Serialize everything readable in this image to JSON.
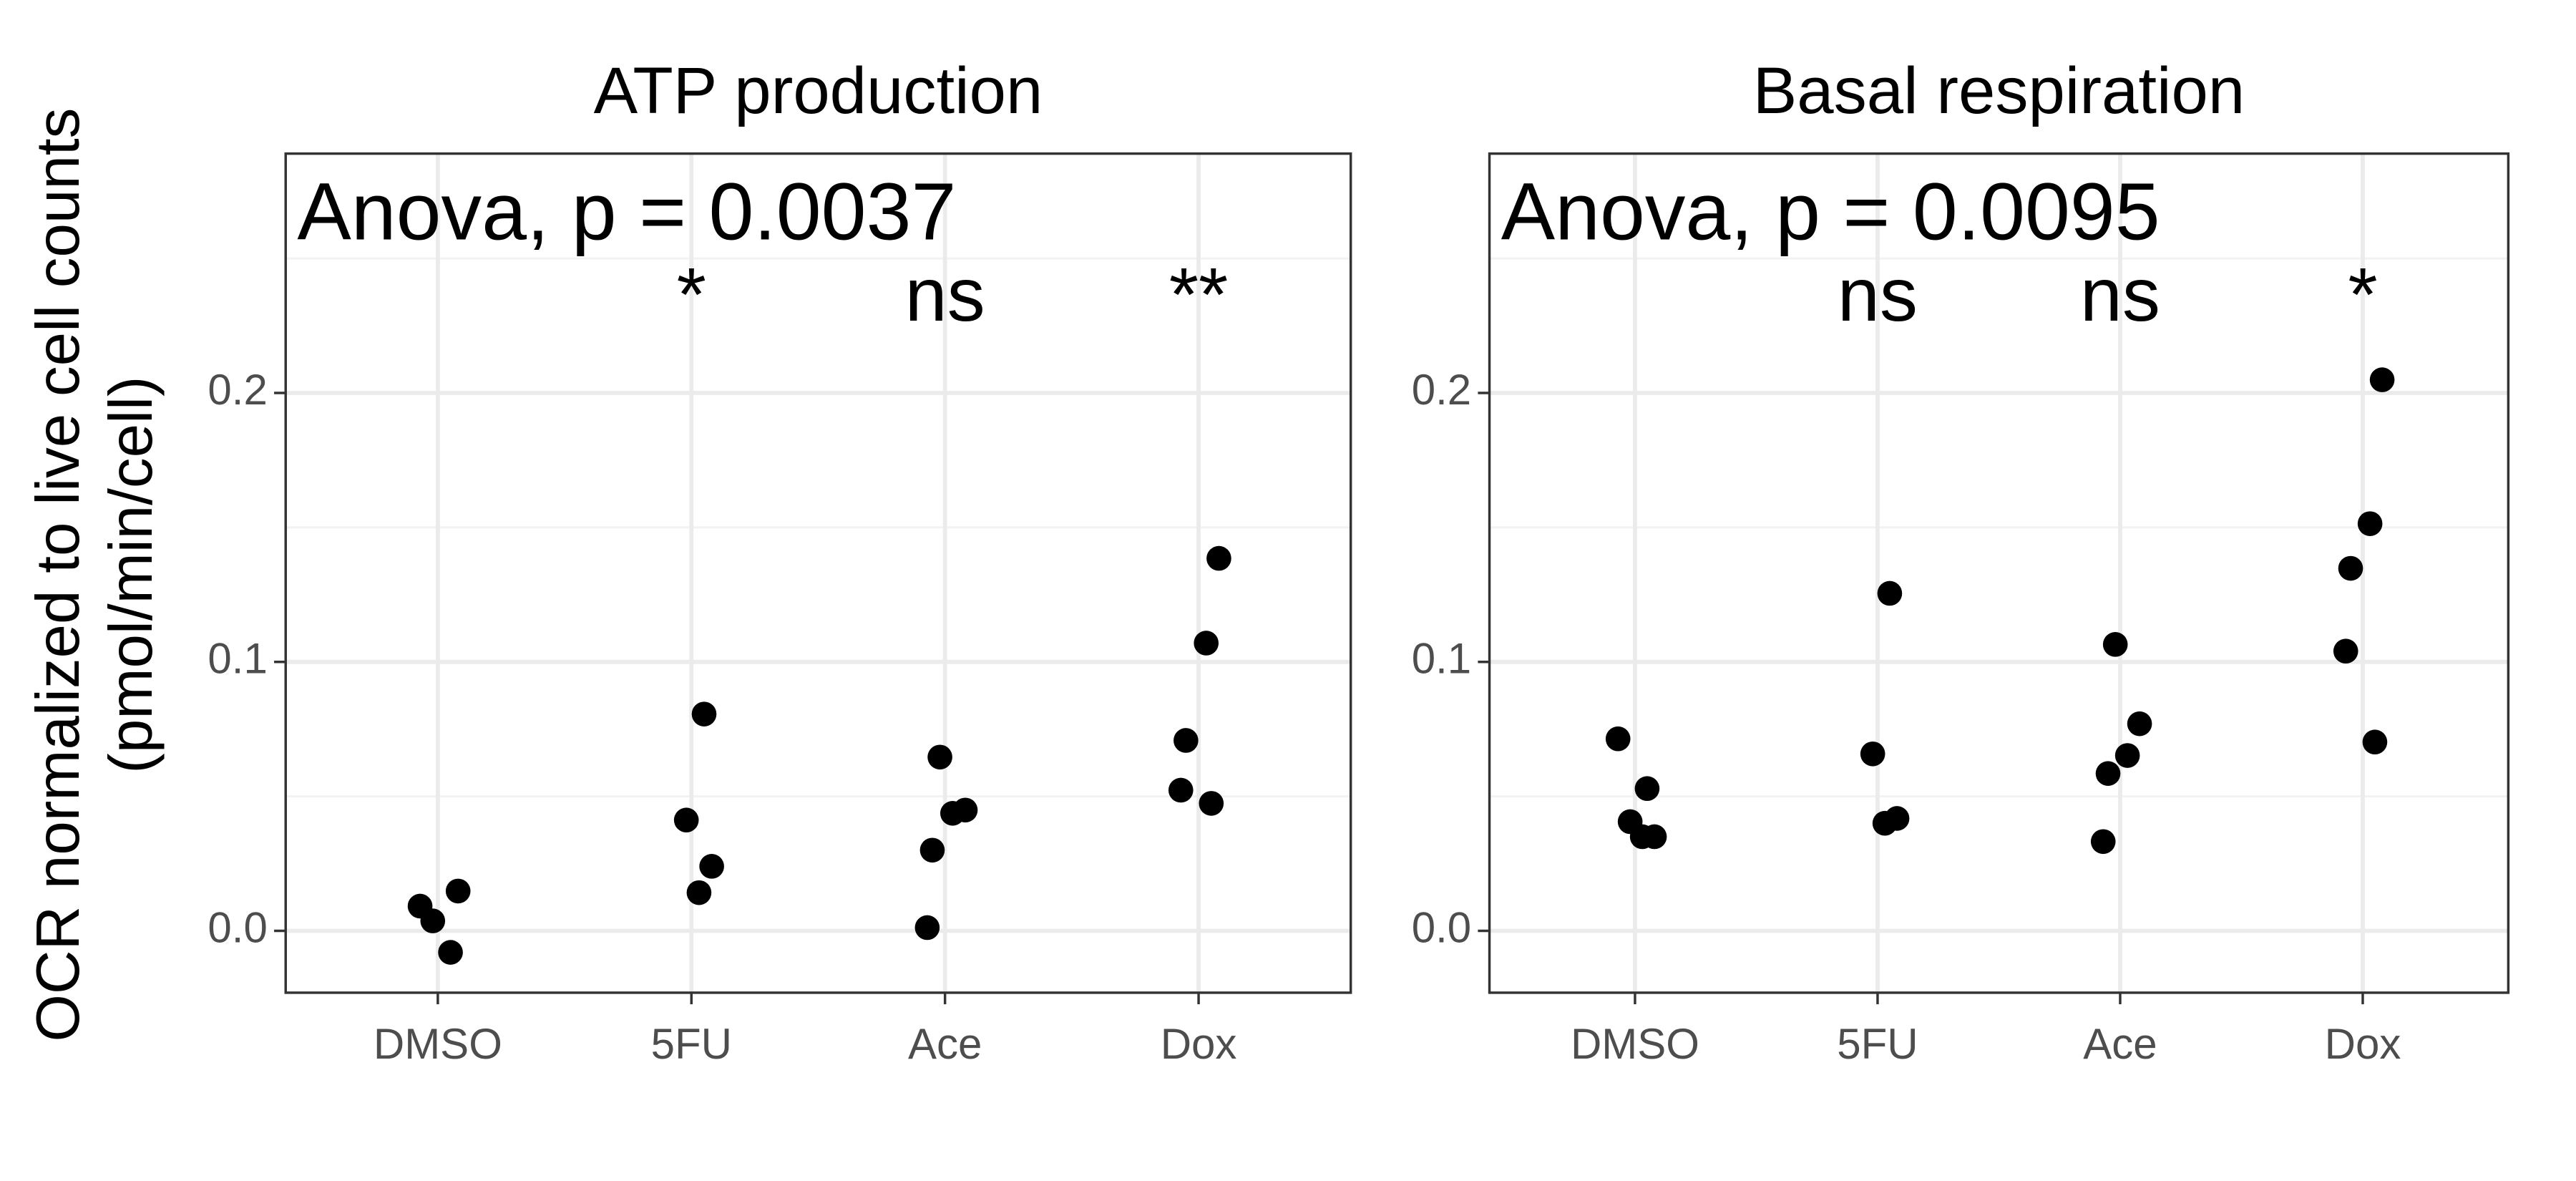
{
  "y_axis_label": [
    "OCR normalized to live cell counts",
    "(pmol/min/cell)"
  ],
  "chart_data": [
    {
      "type": "strip",
      "title": "ATP production",
      "annotation": "Anova, p = 0.0037",
      "categories": [
        "DMSO",
        "5FU",
        "Ace",
        "Dox"
      ],
      "significance": [
        null,
        "*",
        "ns",
        "**"
      ],
      "values": [
        [
          0.0092,
          -0.008,
          0.0037,
          0.0148
        ],
        [
          0.0806,
          0.0412,
          0.024,
          0.0142
        ],
        [
          0.0646,
          0.0449,
          0.0437,
          0.03,
          0.0012
        ],
        [
          0.1385,
          0.107,
          0.0708,
          0.0523,
          0.0474
        ]
      ],
      "color": "#000000",
      "ylim": [
        -0.023,
        0.289
      ],
      "yticks": [
        {
          "value": 0,
          "label": "0.0"
        },
        0.1,
        0.2
      ],
      "yminorticks": [
        0.05,
        0.15,
        0.25
      ],
      "grid": true
    },
    {
      "type": "strip",
      "title": "Basal respiration",
      "annotation": "Anova, p = 0.0095",
      "categories": [
        "DMSO",
        "5FU",
        "Ace",
        "Dox"
      ],
      "significance": [
        null,
        "ns",
        "ns",
        "*"
      ],
      "values": [
        [
          0.0714,
          0.0529,
          0.0406,
          0.035,
          0.035
        ],
        [
          0.1255,
          0.0658,
          0.0418,
          0.04
        ],
        [
          0.1065,
          0.077,
          0.0652,
          0.0585,
          0.0332
        ],
        [
          0.2049,
          0.1514,
          0.1348,
          0.104,
          0.0702
        ]
      ],
      "color": "#000000",
      "ylim": [
        -0.023,
        0.289
      ],
      "yticks": [
        {
          "value": 0,
          "label": "0.0"
        },
        0.1,
        0.2
      ],
      "yminorticks": [
        0.05,
        0.15,
        0.25
      ],
      "grid": true
    }
  ]
}
